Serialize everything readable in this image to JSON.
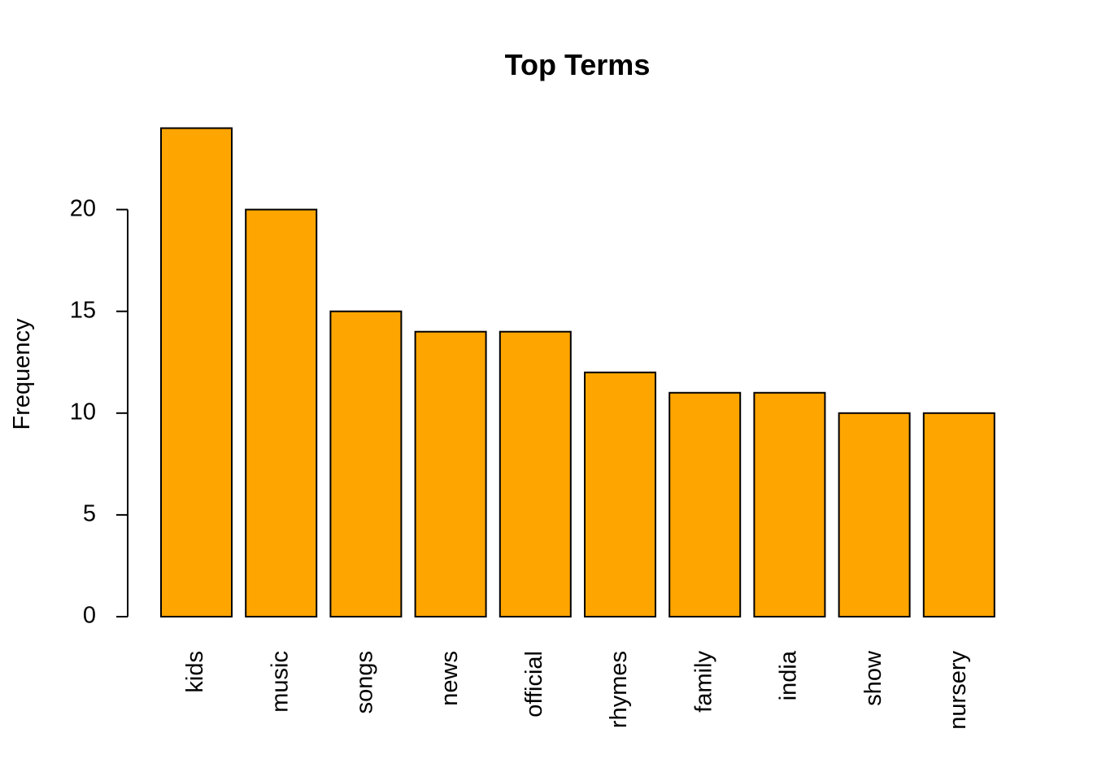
{
  "chart_data": {
    "type": "bar",
    "title": "Top Terms",
    "xlabel": "",
    "ylabel": "Frequency",
    "categories": [
      "kids",
      "music",
      "songs",
      "news",
      "official",
      "rhymes",
      "family",
      "india",
      "show",
      "nursery"
    ],
    "values": [
      24,
      20,
      15,
      14,
      14,
      12,
      11,
      11,
      10,
      10
    ],
    "ylim": [
      0,
      24
    ],
    "yticks": [
      0,
      5,
      10,
      15,
      20
    ],
    "bar_color": "#FFA500",
    "grid": false,
    "category_label_orientation": "vertical"
  }
}
